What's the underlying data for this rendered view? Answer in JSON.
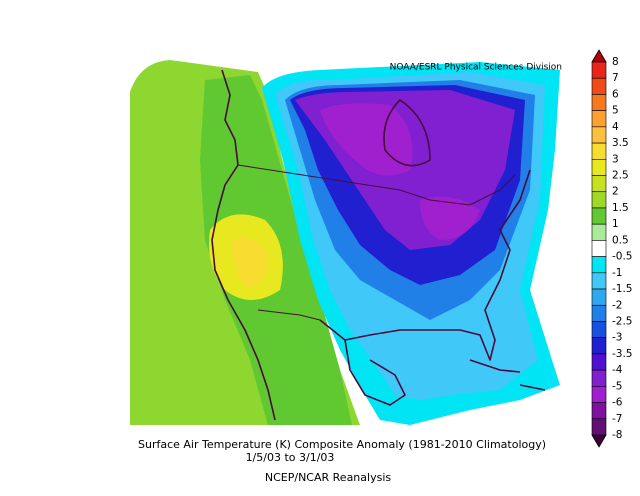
{
  "header": {
    "credit": "NOAA/ESRL Physical Sciences Division"
  },
  "caption": {
    "line1": "Surface Air Temperature (K) Composite Anomaly (1981-2010 Climatology)",
    "line2": "1/5/03  to 3/1/03",
    "line3": "NCEP/NCAR Reanalysis"
  },
  "colorbar": {
    "labels": [
      8,
      7,
      6,
      5,
      4,
      3.5,
      3,
      2.5,
      2,
      1.5,
      1,
      0.5,
      -0.5,
      -1,
      -1.5,
      -2,
      -2.5,
      -3,
      -3.5,
      -4,
      -5,
      -6,
      -7,
      -8
    ],
    "top_color": "#b00010",
    "bottom_color": "#3a0038",
    "colors": [
      "#e8261c",
      "#f04a18",
      "#f87820",
      "#fca030",
      "#fcc040",
      "#f8dc30",
      "#e8e820",
      "#c8e020",
      "#a0d828",
      "#60c830",
      "#a8ec98",
      "#ffffff",
      "#00e4f4",
      "#40c8f8",
      "#30a8f0",
      "#2080e8",
      "#1850e0",
      "#2020d0",
      "#5010d0",
      "#8020d0",
      "#a020d0",
      "#8010a0",
      "#601070"
    ]
  }
}
